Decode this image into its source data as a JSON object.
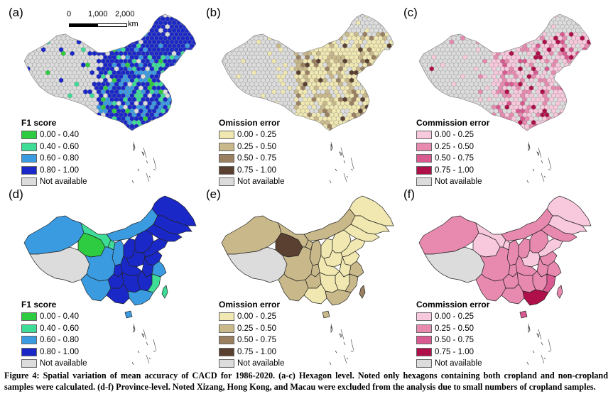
{
  "panels": [
    {
      "label": "(a)",
      "legend_title": "F1 score",
      "palette": "f1",
      "mode": "hex",
      "items": [
        "0.00 - 0.40",
        "0.40 - 0.60",
        "0.60 - 0.80",
        "0.80 - 1.00",
        "Not available"
      ],
      "colors": [
        "#2ecc40",
        "#3ddc97",
        "#3a9be0",
        "#1a28c8",
        "#dcdcdc"
      ]
    },
    {
      "label": "(b)",
      "legend_title": "Omission error",
      "palette": "om",
      "mode": "hex",
      "items": [
        "0.00 - 0.25",
        "0.25 - 0.50",
        "0.50 - 0.75",
        "0.75 - 1.00",
        "Not available"
      ],
      "colors": [
        "#f0e8b0",
        "#c8b88a",
        "#9a8060",
        "#5a4030",
        "#dcdcdc"
      ]
    },
    {
      "label": "(c)",
      "legend_title": "Commission error",
      "palette": "cm",
      "mode": "hex",
      "items": [
        "0.00 - 0.25",
        "0.25 - 0.50",
        "0.50 - 0.75",
        "0.75 - 1.00",
        "Not available"
      ],
      "colors": [
        "#f8c8dc",
        "#e88ab0",
        "#d85a90",
        "#b0104a",
        "#dcdcdc"
      ]
    },
    {
      "label": "(d)",
      "legend_title": "F1 score",
      "palette": "f1",
      "mode": "prov",
      "items": [
        "0.00 - 0.40",
        "0.40 - 0.60",
        "0.60 - 0.80",
        "0.80 - 1.00",
        "Not available"
      ],
      "colors": [
        "#2ecc40",
        "#3ddc97",
        "#3a9be0",
        "#1a28c8",
        "#dcdcdc"
      ]
    },
    {
      "label": "(e)",
      "legend_title": "Omission error",
      "palette": "om",
      "mode": "prov",
      "items": [
        "0.00 - 0.25",
        "0.25 - 0.50",
        "0.50 - 0.75",
        "0.75 - 1.00",
        "Not available"
      ],
      "colors": [
        "#f0e8b0",
        "#c8b88a",
        "#9a8060",
        "#5a4030",
        "#dcdcdc"
      ]
    },
    {
      "label": "(f)",
      "legend_title": "Commission error",
      "palette": "cm",
      "mode": "prov",
      "items": [
        "0.00 - 0.25",
        "0.25 - 0.50",
        "0.50 - 0.75",
        "0.75 - 1.00",
        "Not available"
      ],
      "colors": [
        "#f8c8dc",
        "#e88ab0",
        "#d85a90",
        "#b0104a",
        "#dcdcdc"
      ]
    }
  ],
  "scale": {
    "ticks": [
      "0",
      "1,000",
      "2,000"
    ],
    "unit": "km"
  },
  "caption": "Figure 4: Spatial variation of mean accuracy of CACD for 1986-2020. (a-c) Hexagon level. Noted only hexagons containing both cropland and non-cropland samples were calculated.  (d-f) Province-level. Noted Xizang, Hong Kong, and Macau were excluded from the analysis due to small numbers of cropland samples."
}
